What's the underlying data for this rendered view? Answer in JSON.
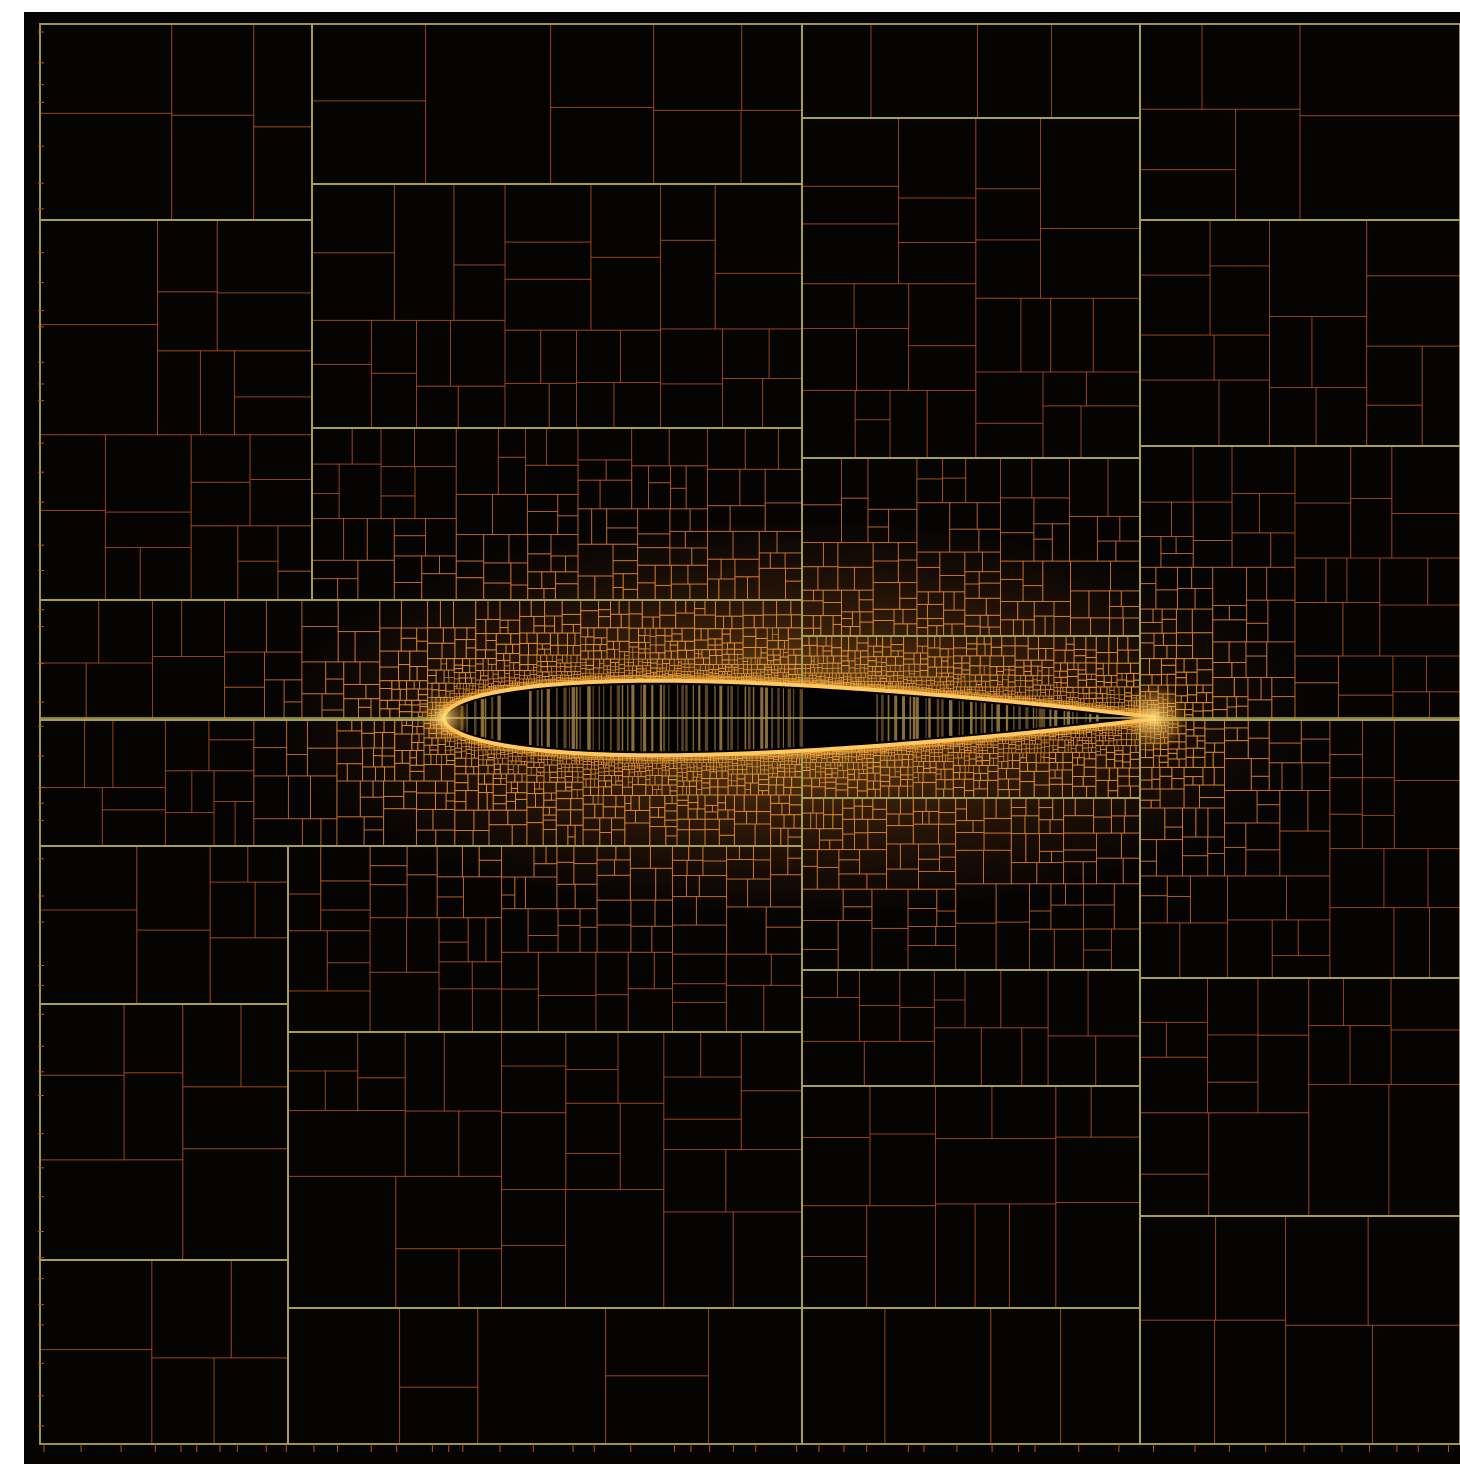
{
  "figure": {
    "kind": "adaptive-quadtree-mesh",
    "subject": "airfoil-cross-section",
    "colors": {
      "background": "#050403",
      "fine_cell_line": "#b8501c",
      "coarse_cell_line": "#a8a050",
      "refinement_glow": "#ffb040",
      "airfoil_interior": "#020202"
    }
  }
}
